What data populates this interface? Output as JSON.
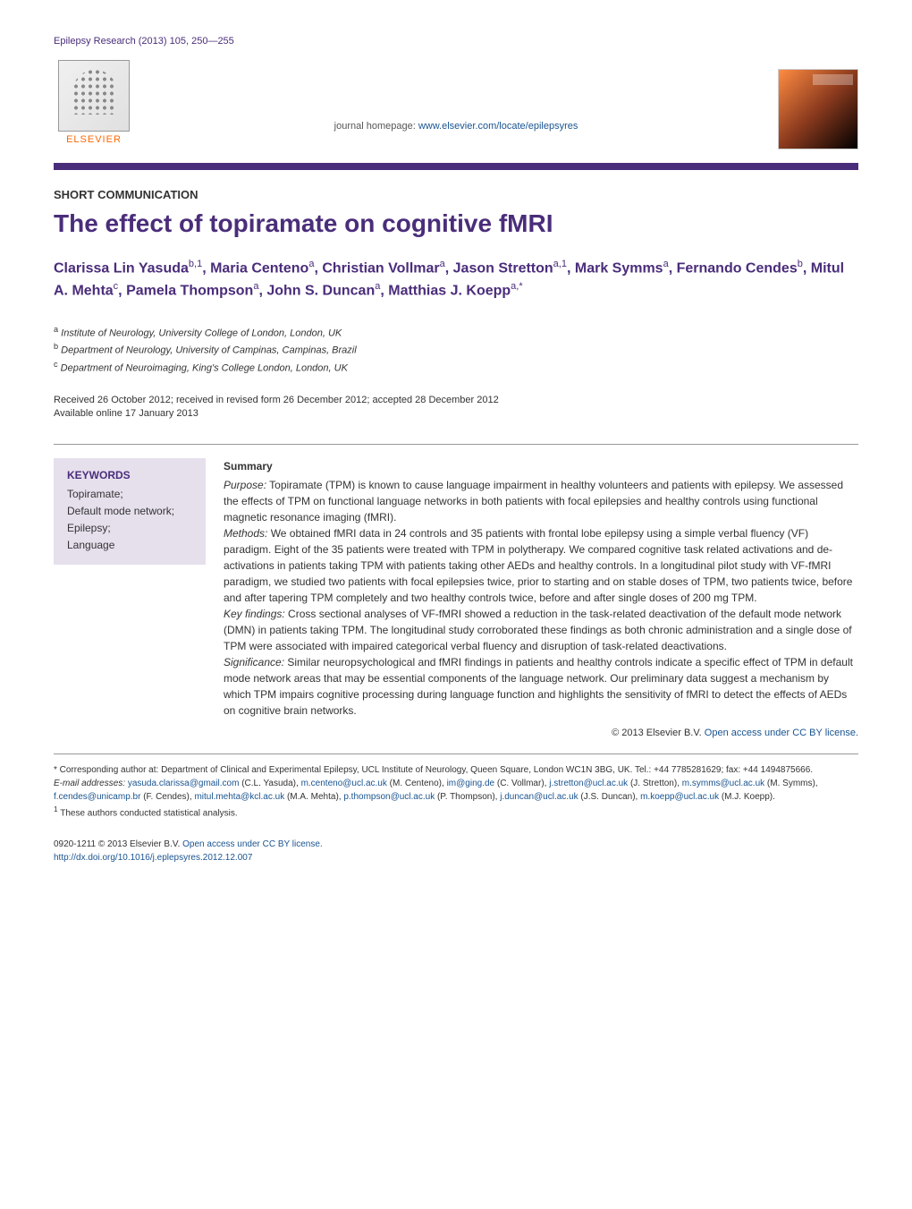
{
  "header": {
    "citation": "Epilepsy Research (2013) 105, 250—255",
    "elsevier_label": "ELSEVIER",
    "homepage_prefix": "journal homepage: ",
    "homepage_url": "www.elsevier.com/locate/epilepsyres"
  },
  "article": {
    "type": "SHORT COMMUNICATION",
    "title": "The effect of topiramate on cognitive fMRI",
    "authors_html": "Clarissa Lin Yasuda<sup>b,1</sup>, Maria Centeno<sup>a</sup>, Christian Vollmar<sup>a</sup>, Jason Stretton<sup>a,1</sup>, Mark Symms<sup>a</sup>, Fernando Cendes<sup>b</sup>, Mitul A. Mehta<sup>c</sup>, Pamela Thompson<sup>a</sup>, John S. Duncan<sup>a</sup>, Matthias J. Koepp<sup>a,*</sup>",
    "affiliations": [
      {
        "sup": "a",
        "text": "Institute of Neurology, University College of London, London, UK"
      },
      {
        "sup": "b",
        "text": "Department of Neurology, University of Campinas, Campinas, Brazil"
      },
      {
        "sup": "c",
        "text": "Department of Neuroimaging, King's College London, London, UK"
      }
    ],
    "dates_line1": "Received 26 October 2012; received in revised form 26 December 2012; accepted 28 December 2012",
    "dates_line2": "Available online 17 January 2013"
  },
  "keywords": {
    "heading": "KEYWORDS",
    "items": [
      "Topiramate;",
      "Default mode network;",
      "Epilepsy;",
      "Language"
    ]
  },
  "summary": {
    "heading": "Summary",
    "purpose_label": "Purpose:",
    "purpose_text": " Topiramate (TPM) is known to cause language impairment in healthy volunteers and patients with epilepsy. We assessed the effects of TPM on functional language networks in both patients with focal epilepsies and healthy controls using functional magnetic resonance imaging (fMRI).",
    "methods_label": "Methods:",
    "methods_text": " We obtained fMRI data in 24 controls and 35 patients with frontal lobe epilepsy using a simple verbal fluency (VF) paradigm. Eight of the 35 patients were treated with TPM in polytherapy. We compared cognitive task related activations and de-activations in patients taking TPM with patients taking other AEDs and healthy controls. In a longitudinal pilot study with VF-fMRI paradigm, we studied two patients with focal epilepsies twice, prior to starting and on stable doses of TPM, two patients twice, before and after tapering TPM completely and two healthy controls twice, before and after single doses of 200 mg TPM.",
    "findings_label": "Key findings:",
    "findings_text": " Cross sectional analyses of VF-fMRI showed a reduction in the task-related deactivation of the default mode network (DMN) in patients taking TPM. The longitudinal study corroborated these findings as both chronic administration and a single dose of TPM were associated with impaired categorical verbal fluency and disruption of task-related deactivations.",
    "significance_label": "Significance:",
    "significance_text": " Similar neuropsychological and fMRI findings in patients and healthy controls indicate a specific effect of TPM in default mode network areas that may be essential components of the language network. Our preliminary data suggest a mechanism by which TPM impairs cognitive processing during language function and highlights the sensitivity of fMRI to detect the effects of AEDs on cognitive brain networks.",
    "copyright_prefix": "© 2013 Elsevier B.V. ",
    "copyright_link_text": "Open access under CC BY license."
  },
  "footer": {
    "corresponding_label": "* Corresponding author at: ",
    "corresponding_text": "Department of Clinical and Experimental Epilepsy, UCL Institute of Neurology, Queen Square, London WC1N 3BG, UK. Tel.: +44 7785281629; fax: +44 1494875666.",
    "email_label": "E-mail addresses: ",
    "emails": [
      {
        "email": "yasuda.clarissa@gmail.com",
        "name": "(C.L. Yasuda)"
      },
      {
        "email": "m.centeno@ucl.ac.uk",
        "name": "(M. Centeno)"
      },
      {
        "email": "im@ging.de",
        "name": "(C. Vollmar)"
      },
      {
        "email": "j.stretton@ucl.ac.uk",
        "name": "(J. Stretton)"
      },
      {
        "email": "m.symms@ucl.ac.uk",
        "name": "(M. Symms)"
      },
      {
        "email": "f.cendes@unicamp.br",
        "name": "(F. Cendes)"
      },
      {
        "email": "mitul.mehta@kcl.ac.uk",
        "name": "(M.A. Mehta)"
      },
      {
        "email": "p.thompson@ucl.ac.uk",
        "name": "(P. Thompson)"
      },
      {
        "email": "j.duncan@ucl.ac.uk",
        "name": "(J.S. Duncan)"
      },
      {
        "email": "m.koepp@ucl.ac.uk",
        "name": "(M.J. Koepp)"
      }
    ],
    "note_sup": "1",
    "note_text": " These authors conducted statistical analysis."
  },
  "bottom": {
    "issn": "0920-1211 © 2013 Elsevier B.V. ",
    "access_text": "Open access under CC BY license.",
    "doi": "http://dx.doi.org/10.1016/j.eplepsyres.2012.12.007"
  },
  "colors": {
    "purple": "#4a2d7a",
    "link_blue": "#1a5490",
    "keywords_bg": "#e6e0ed",
    "orange": "#ff6600"
  }
}
